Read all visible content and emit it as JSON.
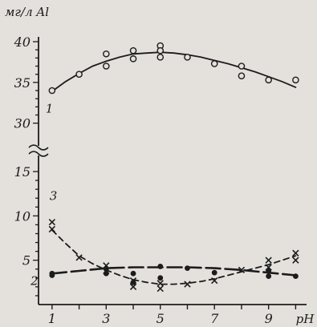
{
  "chart_data": {
    "type": "line",
    "ylabel": "мг/л Al",
    "xlabel": "pH",
    "x_ticks": [
      "1",
      "3",
      "5",
      "7",
      "9"
    ],
    "y_ticks_upper": [
      "30",
      "35",
      "40"
    ],
    "y_ticks_lower": [
      "5",
      "10",
      "15"
    ],
    "xlim": [
      0.5,
      10.7
    ],
    "ylim_upper": [
      28,
      40
    ],
    "ylim_lower": [
      0,
      16
    ],
    "y_axis_break": true,
    "grid": false,
    "series": [
      {
        "name": "1",
        "style": "solid",
        "marker": "open-circle",
        "fit_x": [
          1,
          1.5,
          2,
          2.5,
          3,
          3.5,
          4,
          4.5,
          5,
          5.5,
          6,
          6.5,
          7,
          7.5,
          8,
          8.5,
          9,
          9.5,
          10
        ],
        "fit_y": [
          33.9,
          35.1,
          36.1,
          37.0,
          37.6,
          38.1,
          38.5,
          38.6,
          38.7,
          38.6,
          38.4,
          38.1,
          37.7,
          37.3,
          36.8,
          36.3,
          35.7,
          35.1,
          34.4
        ],
        "points_x": [
          1,
          2,
          3,
          3,
          4,
          4,
          5,
          5,
          5,
          6,
          7,
          8,
          8,
          9,
          10
        ],
        "points_y": [
          34.0,
          36.0,
          38.5,
          37.0,
          38.9,
          37.9,
          39.5,
          38.9,
          38.1,
          38.1,
          37.3,
          37.0,
          35.8,
          35.3,
          35.3
        ]
      },
      {
        "name": "2",
        "style": "long-dash",
        "marker": "filled-circle",
        "fit_x": [
          1,
          2,
          3,
          4,
          5,
          6,
          7,
          8,
          9,
          10
        ],
        "fit_y": [
          3.5,
          3.8,
          4.1,
          4.2,
          4.2,
          4.2,
          4.1,
          3.9,
          3.6,
          3.3
        ],
        "points_x": [
          1,
          1,
          3,
          3,
          4,
          4,
          5,
          5,
          6,
          7,
          9,
          9,
          10
        ],
        "points_y": [
          3.5,
          3.3,
          4.0,
          3.5,
          3.5,
          2.5,
          4.3,
          3.0,
          4.1,
          3.6,
          3.8,
          3.2,
          3.2
        ]
      },
      {
        "name": "3",
        "style": "short-dash",
        "marker": "cross",
        "fit_x": [
          1,
          1.5,
          2,
          2.5,
          3,
          3.5,
          4,
          4.5,
          5,
          5.5,
          6,
          6.5,
          7,
          7.5,
          8,
          8.5,
          9,
          9.5,
          10
        ],
        "fit_y": [
          8.4,
          6.9,
          5.5,
          4.6,
          3.9,
          3.3,
          2.8,
          2.5,
          2.3,
          2.3,
          2.4,
          2.6,
          2.9,
          3.3,
          3.7,
          4.1,
          4.5,
          5.0,
          5.5
        ],
        "points_x": [
          1,
          1,
          2,
          3,
          3,
          4,
          4,
          5,
          5,
          6,
          7,
          8,
          9,
          9,
          10,
          10
        ],
        "points_y": [
          9.3,
          8.5,
          5.3,
          4.4,
          3.8,
          2.7,
          2.0,
          2.4,
          1.8,
          2.3,
          2.7,
          3.9,
          5.0,
          4.2,
          5.8,
          5.0
        ]
      }
    ]
  }
}
